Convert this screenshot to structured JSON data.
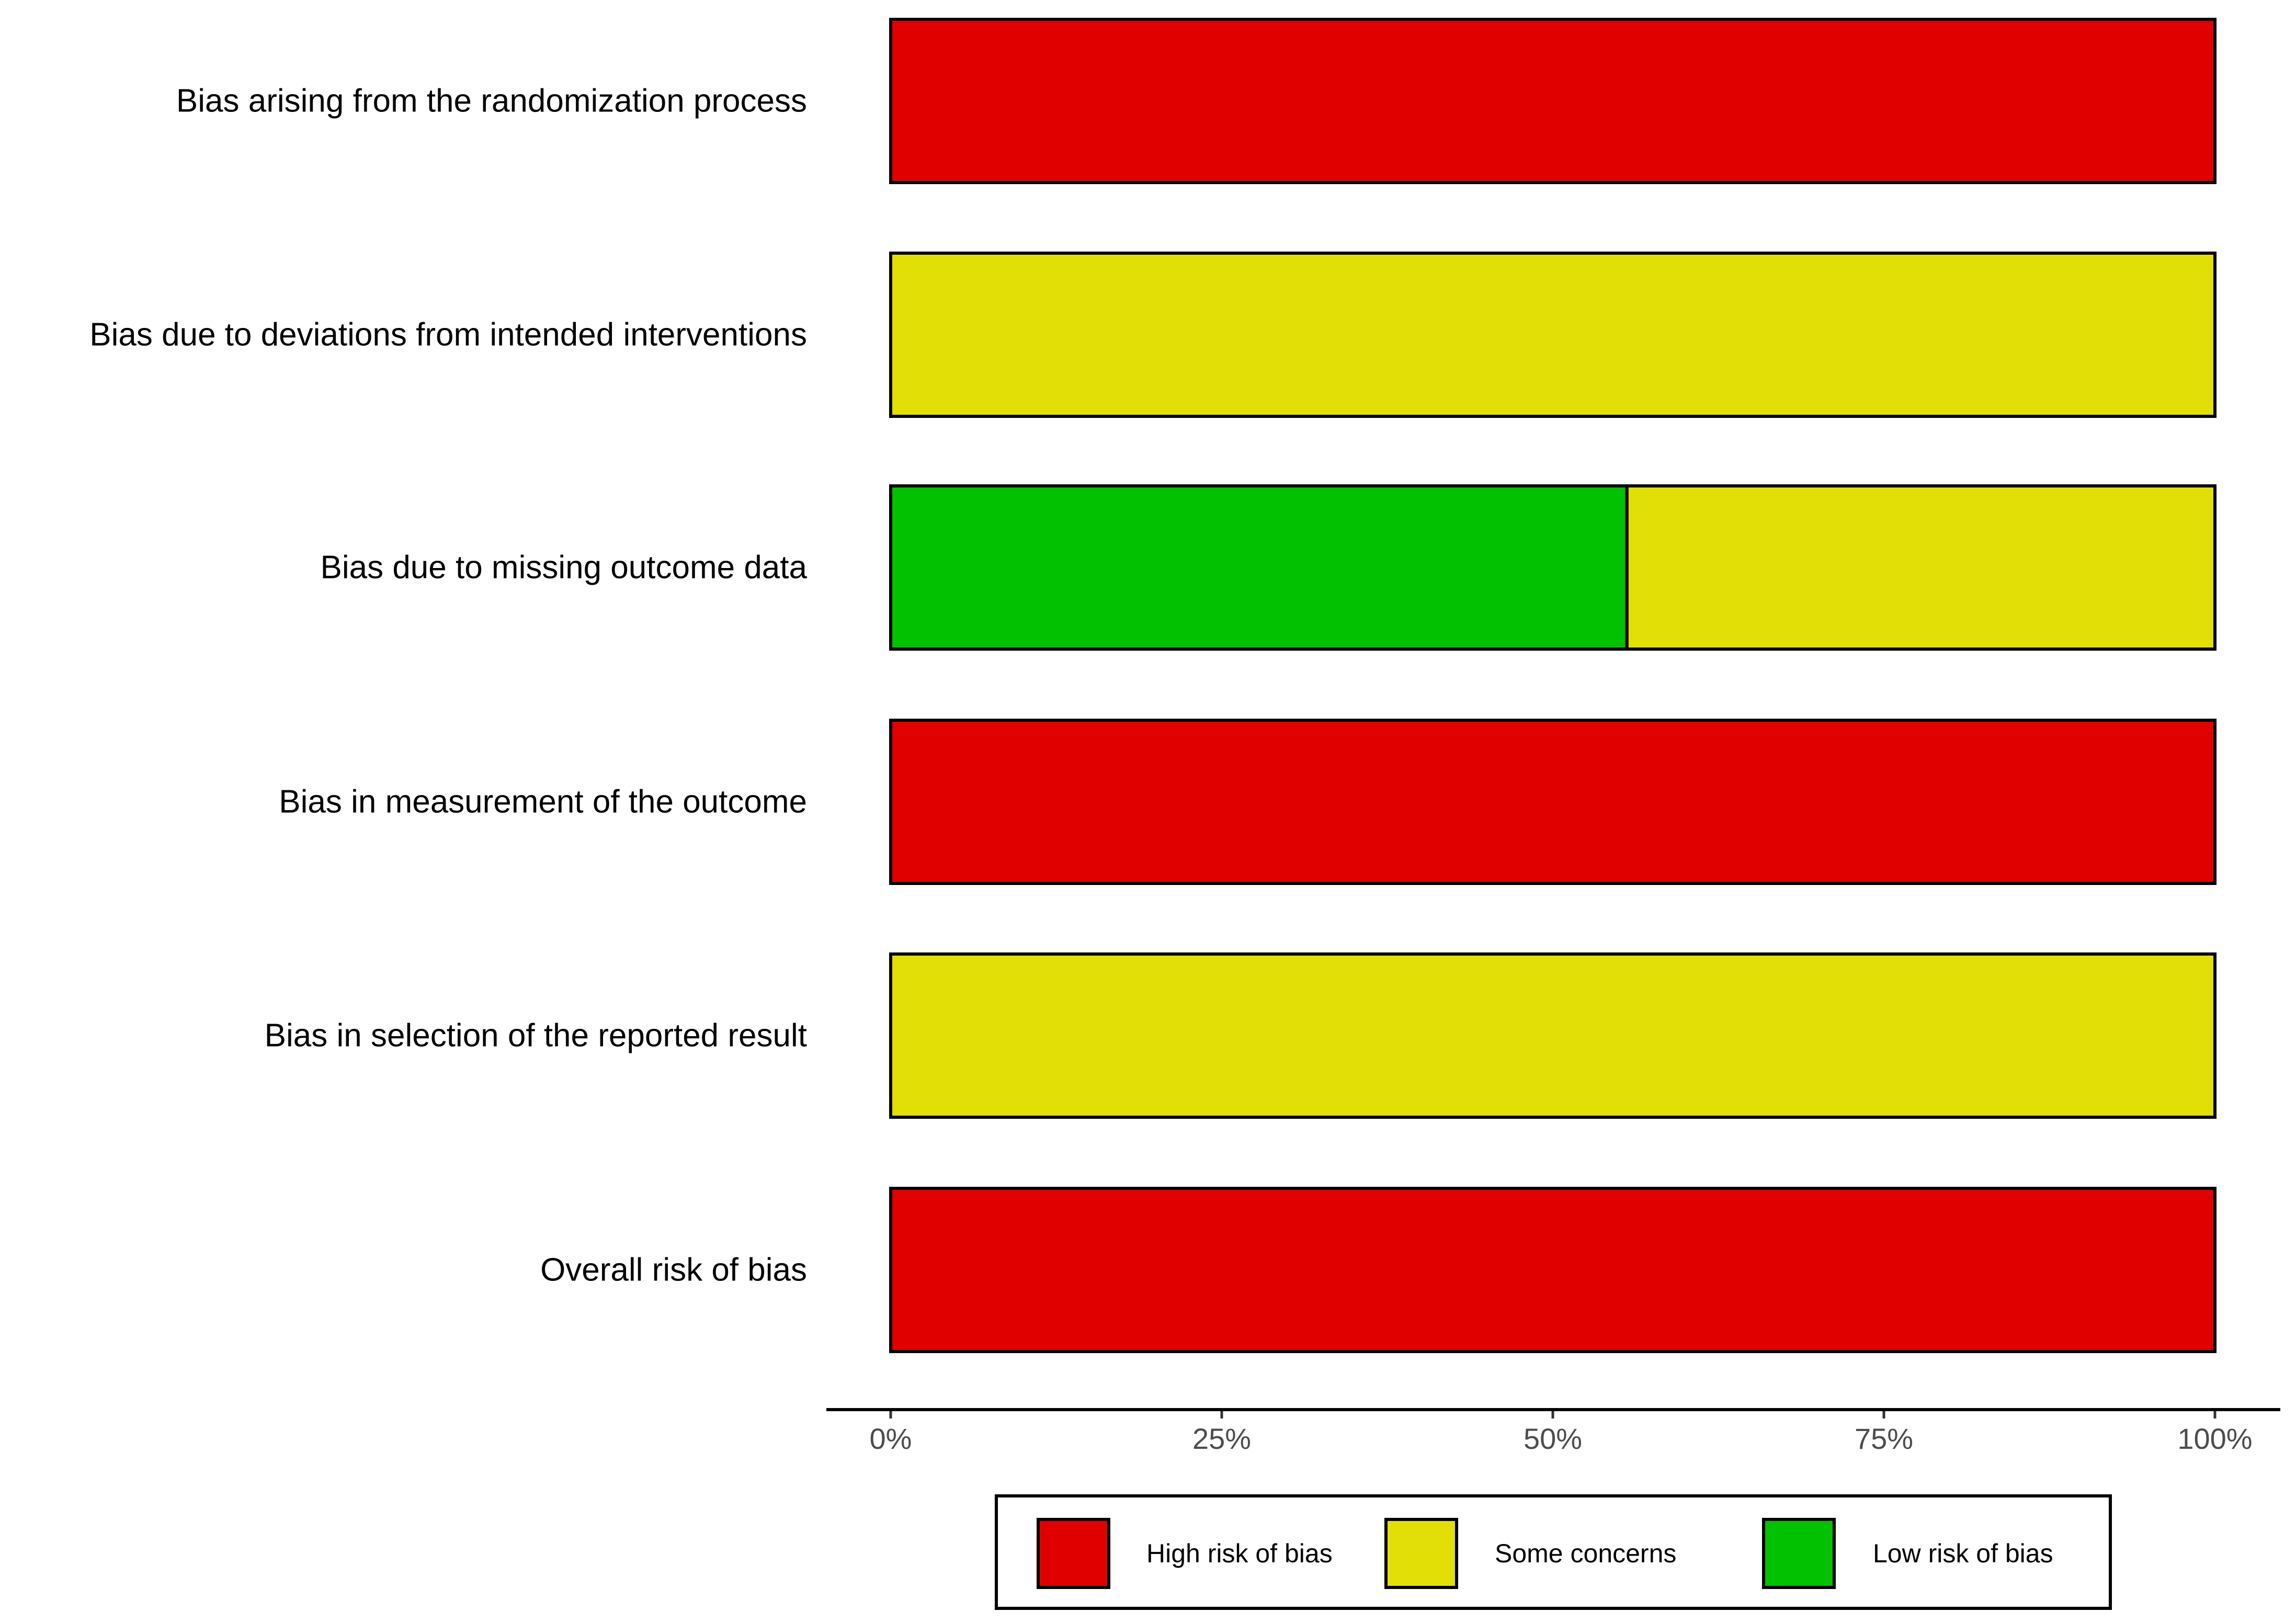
{
  "chart_data": {
    "type": "bar",
    "orientation": "horizontal",
    "stacked": true,
    "categories": [
      "Bias arising from the randomization process",
      "Bias due to deviations from intended interventions",
      "Bias due to missing outcome data",
      "Bias in measurement of the outcome",
      "Bias in selection of the reported result",
      "Overall risk of bias"
    ],
    "series": [
      {
        "name": "Low risk of bias",
        "color": "#02C100",
        "values": [
          0,
          0,
          55.6,
          0,
          0,
          0
        ]
      },
      {
        "name": "Some concerns",
        "color": "#E2DF07",
        "values": [
          0,
          100,
          44.4,
          0,
          100,
          0
        ]
      },
      {
        "name": "High risk of bias",
        "color": "#E10000",
        "values": [
          100,
          0,
          0,
          100,
          0,
          100
        ]
      }
    ],
    "x_ticks": [
      "0%",
      "25%",
      "50%",
      "75%",
      "100%"
    ],
    "xlim": [
      0,
      100
    ],
    "title": "",
    "xlabel": "",
    "ylabel": "",
    "grid": false,
    "legend": {
      "position": "bottom",
      "entries": [
        {
          "label": "High risk of bias",
          "color": "#E10000"
        },
        {
          "label": "Some concerns",
          "color": "#E2DF07"
        },
        {
          "label": "Low risk of bias",
          "color": "#02C100"
        }
      ]
    }
  }
}
